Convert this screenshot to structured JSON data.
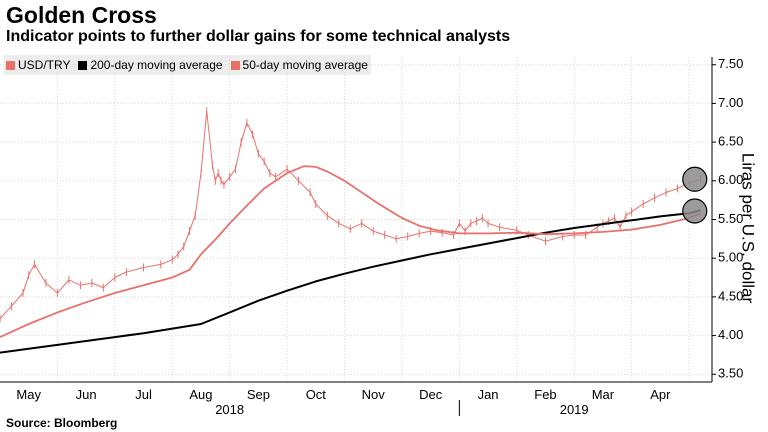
{
  "header": {
    "title": "Golden Cross",
    "subtitle": "Indicator points to further dollar gains for some technical analysts"
  },
  "footer": {
    "source": "Source: Bloomberg"
  },
  "chart_data": {
    "type": "line",
    "title": "Golden Cross",
    "subtitle": "Indicator points to further dollar gains for some technical analysts",
    "xlabel": "",
    "ylabel": "Liras per U.S. dollar",
    "ylim": [
      3.4,
      7.6
    ],
    "yticks": [
      3.5,
      4.0,
      4.5,
      5.0,
      5.5,
      6.0,
      6.5,
      7.0,
      7.5
    ],
    "ytick_labels": [
      "3.50",
      "4.00",
      "4.50",
      "5.00",
      "5.50",
      "6.00",
      "6.50",
      "7.00",
      "7.50"
    ],
    "xlim": [
      0,
      12.4
    ],
    "month_ticks": [
      {
        "label": "May",
        "x": 0.5
      },
      {
        "label": "Jun",
        "x": 1.5
      },
      {
        "label": "Jul",
        "x": 2.5
      },
      {
        "label": "Aug",
        "x": 3.5
      },
      {
        "label": "Sep",
        "x": 4.5
      },
      {
        "label": "Oct",
        "x": 5.5
      },
      {
        "label": "Nov",
        "x": 6.5
      },
      {
        "label": "Dec",
        "x": 7.5
      },
      {
        "label": "Jan",
        "x": 8.5
      },
      {
        "label": "Feb",
        "x": 9.5
      },
      {
        "label": "Mar",
        "x": 10.5
      },
      {
        "label": "Apr",
        "x": 11.5
      }
    ],
    "year_labels": [
      {
        "label": "2018",
        "x": 4.0
      },
      {
        "label": "2019",
        "x": 10.0
      }
    ],
    "year_separator_x": 8.0,
    "grid": true,
    "legend_position": "top-left",
    "colors": {
      "usdtry": "#e8716a",
      "ma200": "#000000",
      "ma50": "#e8716a",
      "highlight": "#8a8a8a",
      "grid": "#d6d6d6"
    },
    "series": [
      {
        "name": "USD/TRY",
        "style": "price",
        "x": [
          0.0,
          0.2,
          0.4,
          0.5,
          0.6,
          0.8,
          1.0,
          1.2,
          1.4,
          1.6,
          1.8,
          2.0,
          2.2,
          2.5,
          2.8,
          3.0,
          3.1,
          3.2,
          3.3,
          3.4,
          3.5,
          3.6,
          3.7,
          3.75,
          3.8,
          3.85,
          3.9,
          4.0,
          4.1,
          4.2,
          4.3,
          4.4,
          4.5,
          4.6,
          4.7,
          4.8,
          5.0,
          5.2,
          5.4,
          5.5,
          5.7,
          5.9,
          6.1,
          6.3,
          6.5,
          6.7,
          6.9,
          7.1,
          7.3,
          7.5,
          7.7,
          7.9,
          8.0,
          8.1,
          8.2,
          8.3,
          8.4,
          8.5,
          8.7,
          9.0,
          9.2,
          9.5,
          9.8,
          10.0,
          10.2,
          10.4,
          10.5,
          10.6,
          10.7,
          10.8,
          10.9,
          11.0,
          11.2,
          11.4,
          11.6,
          11.8,
          12.0,
          12.2
        ],
        "values": [
          4.22,
          4.38,
          4.55,
          4.78,
          4.92,
          4.68,
          4.55,
          4.72,
          4.65,
          4.68,
          4.62,
          4.75,
          4.82,
          4.88,
          4.92,
          4.98,
          5.05,
          5.15,
          5.35,
          5.55,
          6.1,
          6.9,
          6.2,
          6.0,
          6.1,
          6.0,
          5.95,
          6.05,
          6.15,
          6.5,
          6.75,
          6.6,
          6.35,
          6.25,
          6.1,
          6.05,
          6.15,
          6.0,
          5.85,
          5.7,
          5.55,
          5.45,
          5.38,
          5.45,
          5.35,
          5.3,
          5.25,
          5.28,
          5.32,
          5.35,
          5.33,
          5.3,
          5.45,
          5.35,
          5.45,
          5.48,
          5.52,
          5.45,
          5.4,
          5.36,
          5.3,
          5.22,
          5.28,
          5.3,
          5.3,
          5.4,
          5.45,
          5.48,
          5.52,
          5.4,
          5.55,
          5.6,
          5.7,
          5.78,
          5.85,
          5.9,
          5.97,
          6.02
        ]
      },
      {
        "name": "200-day moving average",
        "style": "ma200",
        "x": [
          0.0,
          0.5,
          1.0,
          1.5,
          2.0,
          2.5,
          3.0,
          3.5,
          4.0,
          4.5,
          5.0,
          5.5,
          6.0,
          6.5,
          7.0,
          7.5,
          8.0,
          8.5,
          9.0,
          9.5,
          10.0,
          10.5,
          11.0,
          11.5,
          12.0,
          12.2
        ],
        "values": [
          3.78,
          3.83,
          3.88,
          3.93,
          3.98,
          4.03,
          4.09,
          4.15,
          4.3,
          4.45,
          4.58,
          4.7,
          4.8,
          4.89,
          4.97,
          5.05,
          5.12,
          5.19,
          5.26,
          5.33,
          5.39,
          5.44,
          5.49,
          5.54,
          5.58,
          5.62
        ]
      },
      {
        "name": "50-day moving average",
        "style": "ma50",
        "x": [
          0.0,
          0.5,
          1.0,
          1.5,
          2.0,
          2.5,
          3.0,
          3.3,
          3.5,
          3.8,
          4.0,
          4.3,
          4.6,
          5.0,
          5.3,
          5.5,
          5.7,
          6.0,
          6.3,
          6.6,
          7.0,
          7.3,
          7.6,
          8.0,
          8.5,
          9.0,
          9.5,
          10.0,
          10.5,
          11.0,
          11.5,
          12.0,
          12.2
        ],
        "values": [
          3.98,
          4.15,
          4.3,
          4.43,
          4.55,
          4.65,
          4.75,
          4.85,
          5.05,
          5.28,
          5.45,
          5.68,
          5.9,
          6.1,
          6.19,
          6.18,
          6.12,
          6.0,
          5.85,
          5.7,
          5.52,
          5.42,
          5.36,
          5.32,
          5.32,
          5.33,
          5.31,
          5.32,
          5.34,
          5.37,
          5.43,
          5.52,
          5.58
        ]
      }
    ],
    "highlights": [
      {
        "name": "usdtry-latest",
        "x": 12.1,
        "y": 6.02
      },
      {
        "name": "golden-cross",
        "x": 12.1,
        "y": 5.61
      }
    ]
  },
  "legend": {
    "items": [
      {
        "label": "USD/TRY",
        "color": "#e8716a"
      },
      {
        "label": "200-day moving average",
        "color": "#000000"
      },
      {
        "label": "50-day moving average",
        "color": "#e8716a"
      }
    ]
  }
}
